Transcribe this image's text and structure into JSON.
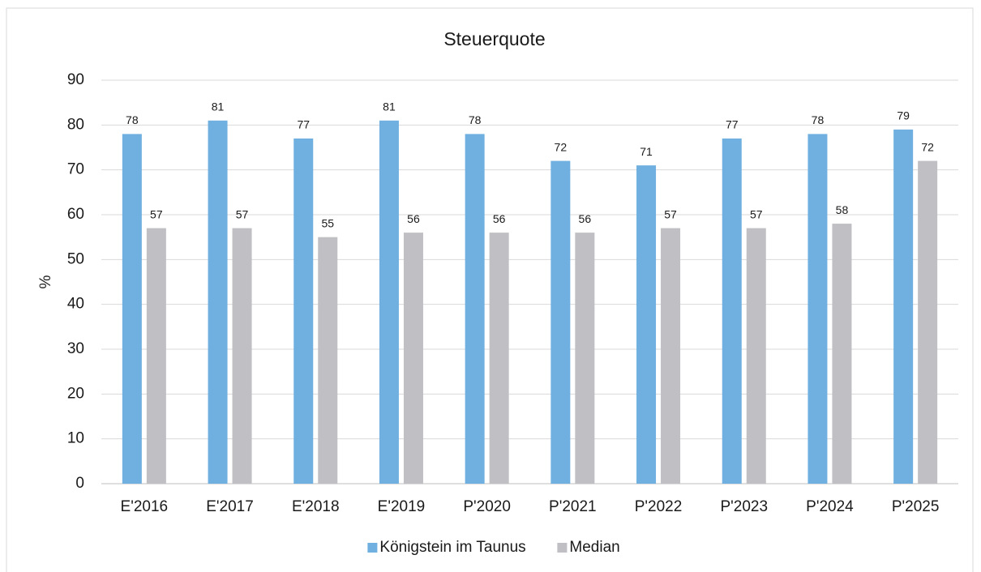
{
  "chart_data": {
    "type": "bar",
    "title": "Steuerquote",
    "y_label": "%",
    "categories": [
      "E'2016",
      "E'2017",
      "E'2018",
      "E'2019",
      "P'2020",
      "P'2021",
      "P'2022",
      "P'2023",
      "P'2024",
      "P'2025"
    ],
    "series": [
      {
        "name": "Königstein im Taunus",
        "color": "#6fb0e0",
        "values": [
          78,
          81,
          77,
          81,
          78,
          72,
          71,
          77,
          78,
          79
        ]
      },
      {
        "name": "Median",
        "color": "#bfbfc4",
        "values": [
          57,
          57,
          55,
          56,
          56,
          56,
          57,
          57,
          58,
          72
        ]
      }
    ],
    "ylim": [
      0,
      90
    ],
    "yticks": [
      0,
      10,
      20,
      30,
      40,
      50,
      60,
      70,
      80,
      90
    ],
    "grid": true,
    "legend": "bottom"
  }
}
